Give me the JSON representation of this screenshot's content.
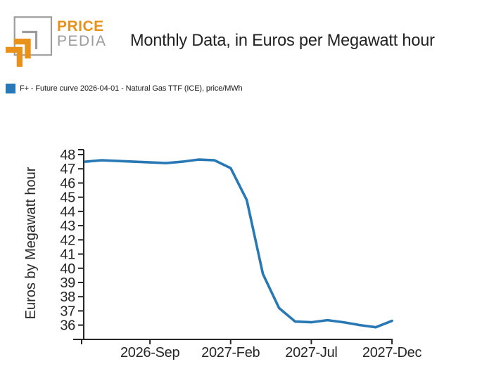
{
  "header": {
    "logo": {
      "brand_top": "PRICE",
      "brand_bottom": "PEDIA",
      "orange": "#E8921C",
      "gray": "#9C9C9C"
    },
    "title": "Monthly Data, in Euros per Megawatt hour"
  },
  "legend": {
    "swatch_color": "#2878B5",
    "label": "F+ - Future curve 2026-04-01 - Natural Gas TTF (ICE), price/MWh"
  },
  "chart_data": {
    "type": "line",
    "title": "Monthly Data, in Euros per Megawatt hour",
    "xlabel": "",
    "ylabel": "Euros by Megawatt hour",
    "grid": false,
    "legend_position": "top-left",
    "ylim": [
      35.5,
      48.5
    ],
    "y_ticks": [
      36,
      37,
      38,
      39,
      40,
      41,
      42,
      43,
      44,
      45,
      46,
      47,
      48
    ],
    "x_ticks": [
      {
        "label": "2026-Sep",
        "month_index": 4
      },
      {
        "label": "2027-Feb",
        "month_index": 9
      },
      {
        "label": "2027-Jul",
        "month_index": 14
      },
      {
        "label": "2027-Dec",
        "month_index": 19
      }
    ],
    "series": [
      {
        "name": "F+ - Future curve 2026-04-01 - Natural Gas TTF (ICE), price/MWh",
        "color": "#2878B5",
        "x": [
          "2026-05",
          "2026-06",
          "2026-07",
          "2026-08",
          "2026-09",
          "2026-10",
          "2026-11",
          "2026-12",
          "2027-01",
          "2027-02",
          "2027-03",
          "2027-04",
          "2027-05",
          "2027-06",
          "2027-07",
          "2027-08",
          "2027-09",
          "2027-10",
          "2027-11",
          "2027-12"
        ],
        "values": [
          47.5,
          47.6,
          47.55,
          47.5,
          47.45,
          47.4,
          47.5,
          47.65,
          47.6,
          47.05,
          44.8,
          39.6,
          37.2,
          36.25,
          36.2,
          36.35,
          36.2,
          36.0,
          35.85,
          36.3
        ]
      }
    ]
  }
}
